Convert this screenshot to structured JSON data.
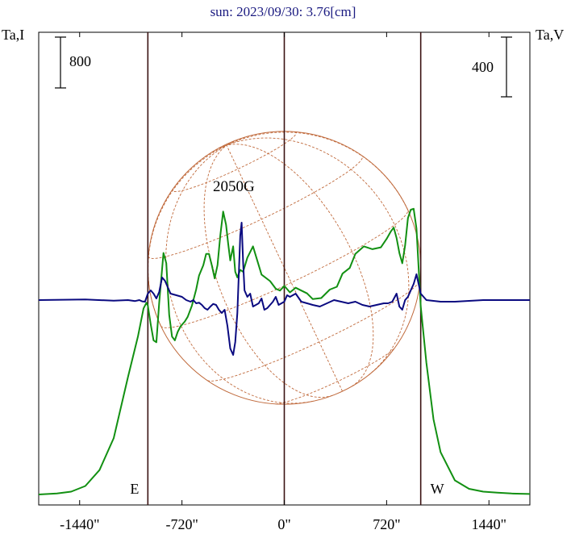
{
  "chart_data": {
    "type": "line",
    "title": "sun: 2023/09/30: 3.76[cm]",
    "y_left_label": "Ta,I",
    "y_right_label": "Ta,V",
    "xlim": [
      -1728,
      1728
    ],
    "x_ticks": [
      -1440,
      -720,
      0,
      720,
      1440
    ],
    "x_tick_labels": [
      "-1440\"",
      "-720\"",
      "0\"",
      "720\"",
      "1440\""
    ],
    "vertical_markers": [
      {
        "x": -960,
        "label": "E"
      },
      {
        "x": 0,
        "label": ""
      },
      {
        "x": 960,
        "label": "W"
      }
    ],
    "scale_bar_left": {
      "label": "800"
    },
    "scale_bar_right": {
      "label": "400"
    },
    "annotation": {
      "text": "2050G",
      "x": -355
    },
    "series": [
      {
        "key": "I",
        "color": "#129012",
        "x": [
          -1728,
          -1600,
          -1500,
          -1400,
          -1300,
          -1200,
          -1100,
          -1030,
          -990,
          -970,
          -960,
          -940,
          -920,
          -900,
          -880,
          -850,
          -830,
          -810,
          -790,
          -770,
          -750,
          -730,
          -700,
          -680,
          -650,
          -620,
          -600,
          -570,
          -550,
          -530,
          -510,
          -490,
          -470,
          -450,
          -430,
          -410,
          -395,
          -380,
          -360,
          -345,
          -330,
          -310,
          -290,
          -260,
          -220,
          -160,
          -100,
          -60,
          -30,
          0,
          40,
          80,
          120,
          160,
          200,
          260,
          320,
          370,
          410,
          460,
          500,
          560,
          620,
          680,
          720,
          750,
          770,
          790,
          810,
          830,
          850,
          870,
          890,
          910,
          930,
          960,
          1000,
          1050,
          1100,
          1200,
          1300,
          1400,
          1500,
          1600,
          1728
        ],
        "y": [
          0,
          10,
          30,
          90,
          260,
          600,
          1250,
          1680,
          1980,
          2040,
          2010,
          1810,
          1640,
          1620,
          2040,
          2570,
          2460,
          1910,
          1680,
          1640,
          1730,
          1790,
          1840,
          1890,
          2010,
          2180,
          2330,
          2440,
          2560,
          2560,
          2440,
          2300,
          2440,
          2760,
          3010,
          2870,
          2670,
          2490,
          2640,
          2370,
          2310,
          2390,
          2370,
          2520,
          2640,
          2340,
          2270,
          2190,
          2170,
          2220,
          2150,
          2200,
          2170,
          2140,
          2080,
          2090,
          2180,
          2210,
          2350,
          2410,
          2560,
          2640,
          2610,
          2630,
          2720,
          2800,
          2840,
          2730,
          2570,
          2460,
          2650,
          2940,
          3030,
          3040,
          2830,
          2000,
          1400,
          800,
          450,
          150,
          60,
          30,
          20,
          10,
          5
        ],
        "v": [
          0,
          0,
          0,
          0,
          0,
          0,
          0,
          -5,
          -20,
          20,
          60,
          40,
          20,
          140,
          60,
          -30,
          -35,
          -10,
          30,
          10,
          -40,
          -10,
          0,
          0,
          -30,
          -10,
          -15,
          -60,
          -20,
          -30,
          -20,
          -120,
          -190,
          -110,
          0,
          170,
          330,
          320,
          170,
          10,
          10,
          20,
          -20,
          -20,
          -20,
          -40,
          -20,
          -40,
          -20,
          0,
          10,
          10,
          30,
          -10,
          -20,
          -10,
          0,
          -20,
          -10,
          10,
          10,
          20,
          -20,
          -50,
          0,
          40,
          60,
          -20,
          -20,
          30,
          180,
          80,
          0,
          30,
          0,
          0,
          0,
          0,
          0,
          0,
          0,
          0,
          0,
          0,
          0
        ]
      },
      {
        "key": "V",
        "color": "#0a0a80",
        "x": [
          -1728,
          -1400,
          -1200,
          -1100,
          -1050,
          -1020,
          -1000,
          -980,
          -960,
          -940,
          -920,
          -900,
          -880,
          -860,
          -840,
          -800,
          -760,
          -720,
          -690,
          -660,
          -640,
          -620,
          -600,
          -580,
          -560,
          -540,
          -520,
          -500,
          -480,
          -460,
          -440,
          -420,
          -400,
          -380,
          -360,
          -345,
          -330,
          -320,
          -310,
          -300,
          -290,
          -280,
          -260,
          -240,
          -220,
          -200,
          -180,
          -160,
          -140,
          -120,
          -100,
          -80,
          -60,
          -40,
          -20,
          0,
          20,
          40,
          80,
          120,
          160,
          200,
          250,
          300,
          350,
          400,
          450,
          500,
          550,
          600,
          650,
          700,
          730,
          760,
          790,
          810,
          830,
          850,
          870,
          890,
          910,
          930,
          960,
          1000,
          1100,
          1200,
          1400,
          1728
        ],
        "y": [
          0,
          2,
          -2,
          0,
          -3,
          0,
          -4,
          -5,
          20,
          30,
          20,
          5,
          25,
          70,
          60,
          20,
          15,
          10,
          0,
          -5,
          0,
          -10,
          -8,
          -15,
          -25,
          -30,
          -20,
          -12,
          -15,
          -30,
          -40,
          -30,
          -80,
          -150,
          -170,
          -130,
          -40,
          80,
          200,
          240,
          120,
          30,
          10,
          20,
          -20,
          -15,
          -10,
          5,
          -30,
          -25,
          -15,
          -5,
          10,
          -15,
          -10,
          -5,
          15,
          10,
          20,
          -5,
          -10,
          -15,
          -20,
          -10,
          0,
          -5,
          -10,
          -5,
          -15,
          -20,
          -15,
          -10,
          -10,
          -5,
          20,
          -20,
          -30,
          0,
          10,
          30,
          50,
          80,
          20,
          0,
          -5,
          -5,
          0,
          0
        ]
      }
    ]
  }
}
